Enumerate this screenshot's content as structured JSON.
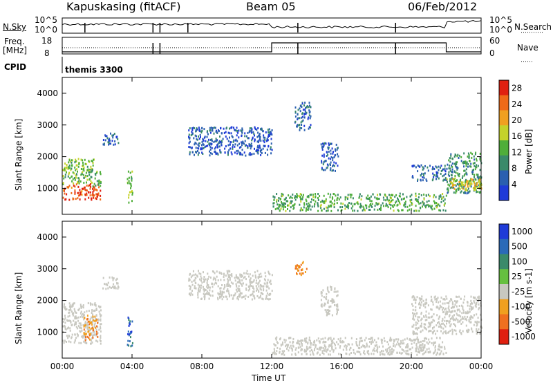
{
  "header": {
    "station": "Kapuskasing (fitACF)",
    "beam": "Beam 05",
    "date": "06/Feb/2012"
  },
  "panels": {
    "nsky_label": "N.Sky",
    "nsky_ticks": [
      "10^5",
      "10^0"
    ],
    "nsearch_label": "N.Search",
    "freq_label": "Freq.",
    "freq_unit": "[MHz]",
    "freq_ticks": [
      "18",
      "8"
    ],
    "nave_ticks": [
      "60",
      "0"
    ],
    "nave_label": "Nave",
    "cpid_label": "CPID",
    "cpid_value": "themis 3300"
  },
  "colors": {
    "power_scale": [
      "#1f3bd8",
      "#2a5fb0",
      "#3a8a6a",
      "#4fae3a",
      "#c4d22a",
      "#f0a020",
      "#ef6a18",
      "#e02010"
    ],
    "velocity_scale": [
      "#1f3bd8",
      "#2a6ab8",
      "#3a8a6a",
      "#66c040",
      "#c8c8c0",
      "#f0a020",
      "#ef7020",
      "#e02010"
    ],
    "ground_scatter": "#c8c8c0"
  },
  "chart_data": [
    {
      "type": "heatmap",
      "title": "Power",
      "xlabel": "Time UT",
      "ylabel": "Slant Range [km]",
      "colorbar_label": "Power [dB]",
      "xlim": [
        0,
        24
      ],
      "ylim": [
        180,
        4500
      ],
      "x_ticks": [
        "00:00",
        "04:00",
        "08:00",
        "12:00",
        "16:00",
        "20:00",
        "00:00"
      ],
      "y_ticks": [
        "1000",
        "2000",
        "3000",
        "4000"
      ],
      "colorbar_ticks": [
        "4",
        "8",
        "12",
        "16",
        "20",
        "24",
        "28"
      ],
      "colorbar_range": [
        0,
        30
      ],
      "regions": [
        {
          "t0": 0.0,
          "t1": 2.2,
          "r0": 600,
          "r1": 1100,
          "value": 26
        },
        {
          "t0": 0.0,
          "t1": 1.8,
          "r0": 1100,
          "r1": 1900,
          "value": 14
        },
        {
          "t0": 1.5,
          "t1": 2.2,
          "r0": 1000,
          "r1": 1600,
          "value": 12
        },
        {
          "t0": 2.3,
          "t1": 3.2,
          "r0": 2300,
          "r1": 2700,
          "value": 6
        },
        {
          "t0": 3.7,
          "t1": 4.0,
          "r0": 500,
          "r1": 1500,
          "value": 14
        },
        {
          "t0": 7.2,
          "t1": 12.0,
          "r0": 2000,
          "r1": 2900,
          "value": 5
        },
        {
          "t0": 13.3,
          "t1": 14.2,
          "r0": 2800,
          "r1": 3700,
          "value": 6
        },
        {
          "t0": 14.8,
          "t1": 15.8,
          "r0": 1500,
          "r1": 2400,
          "value": 5
        },
        {
          "t0": 12.0,
          "t1": 22.0,
          "r0": 250,
          "r1": 800,
          "value": 12
        },
        {
          "t0": 20.0,
          "t1": 22.0,
          "r0": 1200,
          "r1": 1700,
          "value": 6
        },
        {
          "t0": 22.0,
          "t1": 24.0,
          "r0": 800,
          "r1": 2100,
          "value": 10
        },
        {
          "t0": 22.0,
          "t1": 24.0,
          "r0": 900,
          "r1": 1300,
          "value": 18
        }
      ]
    },
    {
      "type": "heatmap",
      "title": "Velocity",
      "xlabel": "Time UT",
      "ylabel": "Slant Range [km]",
      "colorbar_label": "Velocity [m s-1]",
      "xlim": [
        0,
        24
      ],
      "ylim": [
        180,
        4500
      ],
      "x_ticks": [
        "00:00",
        "04:00",
        "08:00",
        "12:00",
        "16:00",
        "20:00",
        "00:00"
      ],
      "y_ticks": [
        "1000",
        "2000",
        "3000",
        "4000"
      ],
      "colorbar_ticks": [
        "1000",
        "500",
        "100",
        "25",
        "-25",
        "-100",
        "-500",
        "-1000"
      ],
      "regions": [
        {
          "t0": 0.0,
          "t1": 2.2,
          "r0": 600,
          "r1": 1900,
          "value": "ground"
        },
        {
          "t0": 1.2,
          "t1": 2.0,
          "r0": 700,
          "r1": 1500,
          "value": -300
        },
        {
          "t0": 2.3,
          "t1": 3.2,
          "r0": 2300,
          "r1": 2700,
          "value": "ground"
        },
        {
          "t0": 3.7,
          "t1": 4.0,
          "r0": 500,
          "r1": 1500,
          "value": 300
        },
        {
          "t0": 7.2,
          "t1": 12.0,
          "r0": 2000,
          "r1": 2900,
          "value": "ground"
        },
        {
          "t0": 13.3,
          "t1": 14.0,
          "r0": 2700,
          "r1": 3200,
          "value": -400
        },
        {
          "t0": 14.8,
          "t1": 15.8,
          "r0": 1500,
          "r1": 2400,
          "value": "ground"
        },
        {
          "t0": 12.0,
          "t1": 22.0,
          "r0": 250,
          "r1": 800,
          "value": "ground"
        },
        {
          "t0": 20.0,
          "t1": 24.0,
          "r0": 900,
          "r1": 2100,
          "value": "ground"
        }
      ]
    }
  ]
}
